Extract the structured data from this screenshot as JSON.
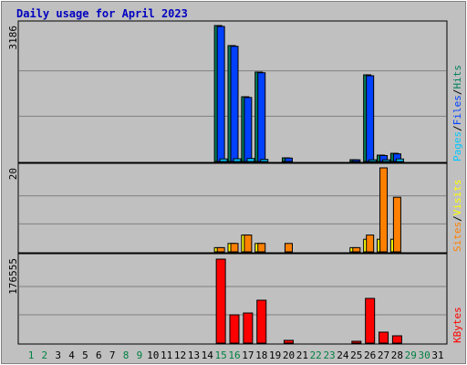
{
  "title": "Daily usage for April 2023",
  "chart_data": [
    {
      "type": "bar",
      "ylim": [
        0,
        3186
      ],
      "yticks": [
        3186
      ],
      "series": [
        {
          "name": "Hits",
          "color": "#00805c",
          "values": [
            0,
            0,
            0,
            0,
            0,
            0,
            0,
            0,
            0,
            0,
            0,
            0,
            0,
            0,
            3186,
            2716,
            1518,
            2096,
            0,
            86,
            0,
            0,
            0,
            0,
            43,
            2031,
            150,
            192,
            0,
            0,
            0
          ]
        },
        {
          "name": "Files",
          "color": "#0040ff",
          "values": [
            0,
            0,
            0,
            0,
            0,
            0,
            0,
            0,
            0,
            0,
            0,
            0,
            0,
            0,
            3165,
            2700,
            1500,
            2080,
            0,
            80,
            0,
            0,
            0,
            0,
            40,
            2010,
            140,
            180,
            0,
            0,
            0
          ]
        },
        {
          "name": "Pages",
          "color": "#00c8ff",
          "values": [
            0,
            0,
            0,
            0,
            0,
            0,
            0,
            0,
            0,
            0,
            0,
            0,
            0,
            0,
            60,
            64,
            70,
            50,
            0,
            0,
            0,
            0,
            0,
            0,
            0,
            40,
            40,
            60,
            0,
            0,
            0
          ]
        }
      ]
    },
    {
      "type": "bar",
      "ylim": [
        0,
        20
      ],
      "yticks": [
        20
      ],
      "series": [
        {
          "name": "Visits",
          "color": "#ffff00",
          "values": [
            0,
            0,
            0,
            0,
            0,
            0,
            0,
            0,
            0,
            0,
            0,
            0,
            0,
            0,
            1,
            2,
            4,
            2,
            0,
            0,
            0,
            0,
            0,
            0,
            1,
            3,
            3,
            3,
            0,
            0,
            0
          ]
        },
        {
          "name": "Sites",
          "color": "#ff8000",
          "values": [
            0,
            0,
            0,
            0,
            0,
            0,
            0,
            0,
            0,
            0,
            0,
            0,
            0,
            0,
            1,
            2,
            4,
            2,
            0,
            2,
            0,
            0,
            0,
            0,
            1,
            4,
            20,
            13,
            0,
            0,
            0
          ]
        }
      ]
    },
    {
      "type": "bar",
      "ylim": [
        0,
        176555
      ],
      "yticks": [
        176555
      ],
      "categories": [
        "1",
        "2",
        "3",
        "4",
        "5",
        "6",
        "7",
        "8",
        "9",
        "10",
        "11",
        "12",
        "13",
        "14",
        "15",
        "16",
        "17",
        "18",
        "19",
        "20",
        "21",
        "22",
        "23",
        "24",
        "25",
        "26",
        "27",
        "28",
        "29",
        "30",
        "31"
      ],
      "label_colors": [
        "#008040",
        "#008040",
        "#000000",
        "#000000",
        "#000000",
        "#000000",
        "#000000",
        "#008040",
        "#008040",
        "#000000",
        "#000000",
        "#000000",
        "#000000",
        "#000000",
        "#008040",
        "#008040",
        "#000000",
        "#000000",
        "#000000",
        "#000000",
        "#000000",
        "#008040",
        "#008040",
        "#000000",
        "#000000",
        "#000000",
        "#000000",
        "#000000",
        "#008040",
        "#008040",
        "#000000"
      ],
      "series": [
        {
          "name": "KBytes",
          "color": "#ff0000",
          "values": [
            0,
            0,
            0,
            0,
            0,
            0,
            0,
            0,
            0,
            0,
            0,
            0,
            0,
            0,
            174656,
            58800,
            62600,
            89200,
            0,
            5700,
            0,
            0,
            0,
            0,
            3800,
            93000,
            22800,
            15200,
            0,
            0,
            0
          ]
        }
      ]
    }
  ]
}
